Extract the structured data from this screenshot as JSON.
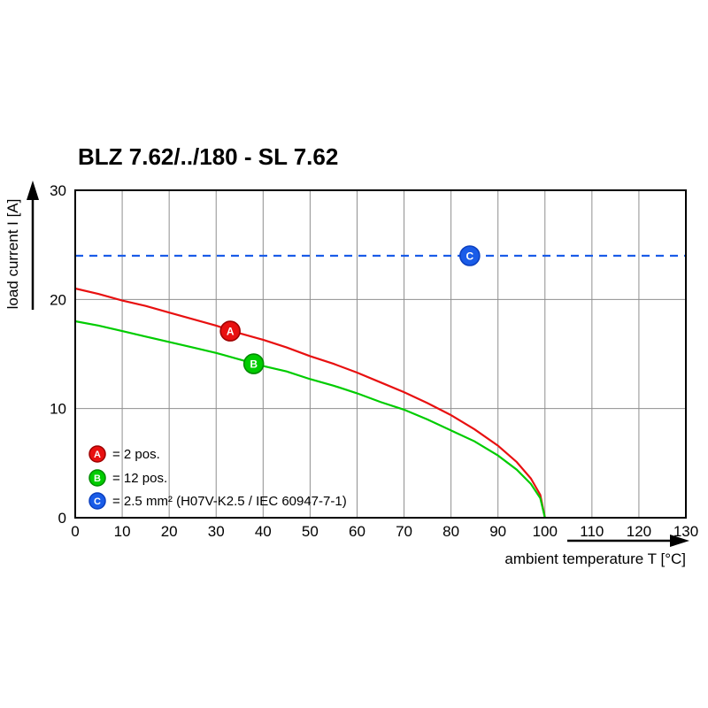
{
  "chart_data": {
    "type": "line",
    "title": "BLZ 7.62/../180 - SL 7.62",
    "xlabel": "ambient temperature T [°C]",
    "ylabel": "load current I [A]",
    "xlim": [
      0,
      130
    ],
    "ylim": [
      0,
      30
    ],
    "xticks": [
      0,
      10,
      20,
      30,
      40,
      50,
      60,
      70,
      80,
      90,
      100,
      110,
      120,
      130
    ],
    "yticks": [
      0,
      10,
      20,
      30
    ],
    "grid": true,
    "legend_position": "inside bottom-left",
    "series": [
      {
        "name": "A",
        "label": "= 2 pos.",
        "color": "#e81010",
        "marker_stroke": "#9e0000",
        "style": "solid",
        "marker": {
          "x": 33,
          "y": 17.1
        },
        "points": [
          [
            0,
            21
          ],
          [
            5,
            20.5
          ],
          [
            10,
            19.9
          ],
          [
            15,
            19.4
          ],
          [
            20,
            18.8
          ],
          [
            25,
            18.2
          ],
          [
            30,
            17.6
          ],
          [
            35,
            16.9
          ],
          [
            40,
            16.3
          ],
          [
            45,
            15.6
          ],
          [
            50,
            14.8
          ],
          [
            55,
            14.1
          ],
          [
            60,
            13.3
          ],
          [
            65,
            12.4
          ],
          [
            70,
            11.5
          ],
          [
            75,
            10.5
          ],
          [
            80,
            9.4
          ],
          [
            85,
            8.1
          ],
          [
            90,
            6.6
          ],
          [
            94,
            5.1
          ],
          [
            97,
            3.6
          ],
          [
            99,
            2.1
          ],
          [
            100,
            0
          ]
        ]
      },
      {
        "name": "B",
        "label": "= 12 pos.",
        "color": "#00cc00",
        "marker_stroke": "#008a00",
        "style": "solid",
        "marker": {
          "x": 38,
          "y": 14.1
        },
        "points": [
          [
            0,
            18
          ],
          [
            5,
            17.6
          ],
          [
            10,
            17.1
          ],
          [
            15,
            16.6
          ],
          [
            20,
            16.1
          ],
          [
            25,
            15.6
          ],
          [
            30,
            15.1
          ],
          [
            35,
            14.5
          ],
          [
            40,
            13.9
          ],
          [
            45,
            13.4
          ],
          [
            50,
            12.7
          ],
          [
            55,
            12.1
          ],
          [
            60,
            11.4
          ],
          [
            65,
            10.6
          ],
          [
            70,
            9.9
          ],
          [
            75,
            9
          ],
          [
            80,
            8
          ],
          [
            85,
            7
          ],
          [
            90,
            5.7
          ],
          [
            94,
            4.4
          ],
          [
            97,
            3.1
          ],
          [
            99,
            1.8
          ],
          [
            100,
            0
          ]
        ]
      },
      {
        "name": "C",
        "label": "= 2.5 mm² (H07V-K2.5 / IEC 60947-7-1)",
        "color": "#1a5ce8",
        "marker_stroke": "#0b3fbf",
        "style": "dashed",
        "marker": {
          "x": 84,
          "y": 24
        },
        "points": [
          [
            0,
            24
          ],
          [
            130,
            24
          ]
        ]
      }
    ]
  }
}
